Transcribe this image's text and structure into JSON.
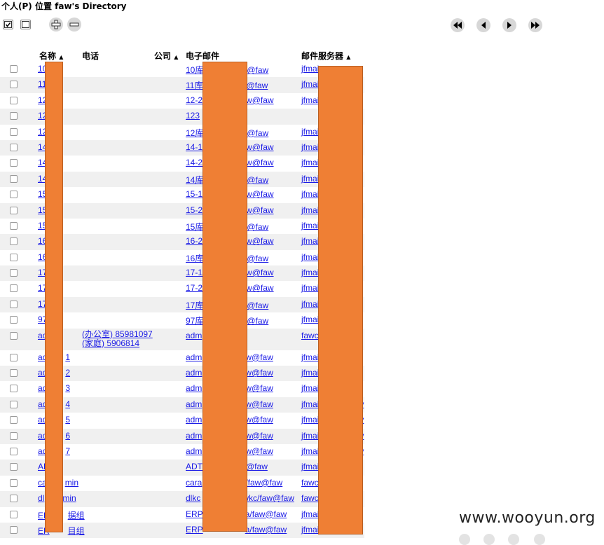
{
  "title": "个人(P) 位置 faw's Directory",
  "toolbar": {
    "icons": [
      "check-all-icon",
      "uncheck-all-icon",
      "add-entry-icon",
      "remove-entry-icon"
    ]
  },
  "pager": {
    "icons": [
      "first-page-icon",
      "prev-page-icon",
      "next-page-icon",
      "last-page-icon"
    ]
  },
  "columns": {
    "name": "名称",
    "phone": "电话",
    "company": "公司",
    "email": "电子邮件",
    "server": "邮件服务器"
  },
  "rows": [
    {
      "name": "10",
      "phone": "",
      "email1": "10库",
      "email2": "@faw",
      "server": "jfmai"
    },
    {
      "name": "11",
      "phone": "",
      "email1": "11库",
      "email2": "@faw",
      "server": "jfmai"
    },
    {
      "name": "12",
      "phone": "",
      "email1": "12-2",
      "email2": "w@faw",
      "server": "jfmai"
    },
    {
      "name": "12",
      "phone": "",
      "email1": "123",
      "email2": "",
      "server": ""
    },
    {
      "name": "12",
      "phone": "",
      "email1": "12库",
      "email2": "@faw",
      "server": "jfmai"
    },
    {
      "name": "14",
      "phone": "",
      "email1": "14-1",
      "email2": "w@faw",
      "server": "jfmai"
    },
    {
      "name": "14",
      "phone": "",
      "email1": "14-2",
      "email2": "w@faw",
      "server": "jfmai"
    },
    {
      "name": "14",
      "phone": "",
      "email1": "14库",
      "email2": "@faw",
      "server": "jfmai"
    },
    {
      "name": "15",
      "phone": "",
      "email1": "15-1",
      "email2": "w@faw",
      "server": "jfmai"
    },
    {
      "name": "15",
      "phone": "",
      "email1": "15-2",
      "email2": "w@faw",
      "server": "jfmai"
    },
    {
      "name": "15",
      "phone": "",
      "email1": "15库",
      "email2": "@faw",
      "server": "jfmai"
    },
    {
      "name": "16",
      "phone": "",
      "email1": "16-2",
      "email2": "w@faw",
      "server": "jfmai"
    },
    {
      "name": "16",
      "phone": "",
      "email1": "16库",
      "email2": "@faw",
      "server": "jfmai"
    },
    {
      "name": "17",
      "phone": "",
      "email1": "17-1",
      "email2": "w@faw",
      "server": "jfmai"
    },
    {
      "name": "17",
      "phone": "",
      "email1": "17-2",
      "email2": "w@faw",
      "server": "jfmai"
    },
    {
      "name": "17",
      "phone": "",
      "email1": "17库",
      "email2": "@faw",
      "server": "jfmai"
    },
    {
      "name": "97",
      "phone": "",
      "email1": "97库",
      "email2": "@faw",
      "server": "jfmai"
    },
    {
      "name": "ad",
      "phone": "(办公室) 85981097",
      "phone2": "(家庭) 5906814",
      "email1": "adm",
      "email2": "",
      "server": "fawc"
    },
    {
      "name": "ad",
      "name2": "1",
      "phone": "",
      "email1": "adm",
      "email2": "w@faw",
      "server": "jfmai"
    },
    {
      "name": "ad",
      "name2": "2",
      "phone": "",
      "email1": "adm",
      "email2": "w@faw",
      "server": "jfmai"
    },
    {
      "name": "ad",
      "name2": "3",
      "phone": "",
      "email1": "adm",
      "email2": "w@faw",
      "server": "jfmai"
    },
    {
      "name": "ad",
      "name2": "4",
      "phone": "",
      "email1": "adm",
      "email2": "w@faw",
      "server": "jfmai",
      "server2": "y"
    },
    {
      "name": "ad",
      "name2": "5",
      "phone": "",
      "email1": "adm",
      "email2": "w@faw",
      "server": "jfmai",
      "server2": "y"
    },
    {
      "name": "ad",
      "name2": "6",
      "phone": "",
      "email1": "adm",
      "email2": "w@faw",
      "server": "jfmai",
      "server2": "y"
    },
    {
      "name": "ad",
      "name2": "7",
      "phone": "",
      "email1": "adm",
      "email2": "w@faw",
      "server": "jfmai",
      "server2": "y"
    },
    {
      "name": "AD",
      "phone": "",
      "email1": "ADT",
      "email2": "@faw",
      "server": "jfmai"
    },
    {
      "name": "ca",
      "name2": "min",
      "phone": "",
      "email1": "cara",
      "email2": "/faw@faw",
      "server": "fawc"
    },
    {
      "name": "dl",
      "name2": "min",
      "phone": "",
      "email1": "dlkc",
      "email2": "wkc/faw@faw",
      "server": "fawc"
    },
    {
      "name": "ER",
      "name2": "据组",
      "phone": "",
      "email1": "ERP",
      "email2": "a/faw@faw",
      "server": "jfmai"
    },
    {
      "name": "ER",
      "name2": "目组",
      "phone": "",
      "email1": "ERP",
      "email2": "a/faw@faw",
      "server": "jfmai"
    }
  ],
  "watermark": "www.wooyun.org",
  "colors": {
    "link": "#1a1ae6",
    "redaction": "#ef7f34",
    "alt_row": "#f0f0f0"
  }
}
